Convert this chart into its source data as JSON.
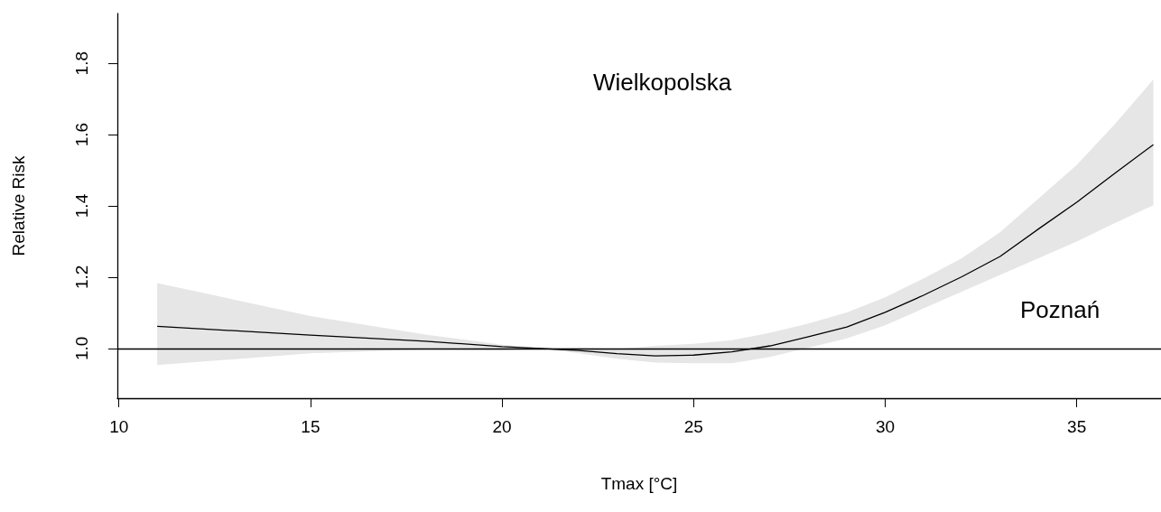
{
  "chart_data": {
    "type": "line",
    "xlabel": "Tmax [°C]",
    "ylabel": "Relative Risk",
    "annotations": [
      "Wielkopolska",
      "Poznań"
    ],
    "x": [
      11,
      15,
      18,
      20,
      21,
      22,
      23,
      24,
      25,
      26,
      27,
      28,
      29,
      30,
      31,
      32,
      33,
      34,
      35,
      36,
      37
    ],
    "series": [
      {
        "color": "#000000",
        "values": [
          1.062,
          1.037,
          1.02,
          1.005,
          1.0,
          0.994,
          0.985,
          0.979,
          0.981,
          0.99,
          1.007,
          1.033,
          1.06,
          1.101,
          1.149,
          1.201,
          1.258,
          1.335,
          1.41,
          1.492,
          1.572
        ],
        "lower": [
          0.953,
          0.986,
          0.997,
          0.995,
          1.0,
          0.986,
          0.971,
          0.96,
          0.958,
          0.958,
          0.976,
          1.002,
          1.028,
          1.065,
          1.112,
          1.159,
          1.206,
          1.253,
          1.3,
          1.352,
          1.402
        ],
        "upper": [
          1.183,
          1.091,
          1.039,
          1.01,
          1.0,
          1.002,
          0.998,
          1.007,
          1.013,
          1.023,
          1.044,
          1.07,
          1.101,
          1.143,
          1.196,
          1.253,
          1.326,
          1.42,
          1.515,
          1.63,
          1.755
        ]
      }
    ],
    "xlim": [
      9.96,
      37.2
    ],
    "ylim": [
      0.86,
      1.94
    ],
    "xticks": [
      10,
      15,
      20,
      25,
      30,
      35
    ],
    "yticks": [
      {
        "value": 1,
        "label": "1.0"
      },
      {
        "value": 1.2,
        "label": "1.2"
      },
      {
        "value": 1.4,
        "label": "1.4"
      },
      {
        "value": 1.6,
        "label": "1.6"
      },
      {
        "value": 1.8,
        "label": "1.8"
      }
    ],
    "ref_lines": [
      {
        "axis": "y",
        "value": 1,
        "color": "#000000"
      }
    ],
    "grid": false,
    "marker": "none",
    "line_style": "solid"
  }
}
